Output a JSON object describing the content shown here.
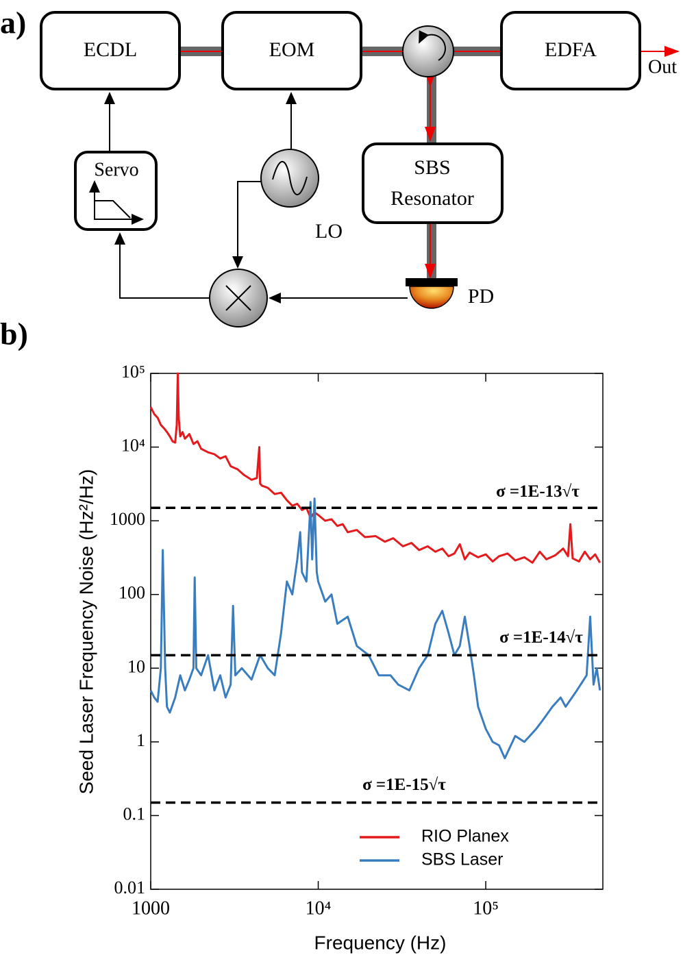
{
  "panel_labels": [
    "a)",
    "b)"
  ],
  "diagram": {
    "ecdl": "ECDL",
    "eom": "EOM",
    "edfa": "EDFA",
    "servo": "Servo",
    "sbs": [
      "SBS",
      "Resonator"
    ],
    "lo": "LO",
    "pd": "PD",
    "out": "Out"
  },
  "chart_data": {
    "type": "line",
    "xlabel": "Frequency (Hz)",
    "ylabel": "Seed Laser Frequency Noise (Hz²/Hz)",
    "log_x": true,
    "log_y": true,
    "grid": false,
    "legend": "lower center",
    "xlim": [
      1000,
      500000
    ],
    "ylim": [
      0.01,
      100000
    ],
    "xticks": [
      1000,
      {
        "value": 10000,
        "label": "10⁴"
      },
      {
        "value": 100000,
        "label": "10⁵"
      }
    ],
    "yticks": [
      0.01,
      0.1,
      1,
      10,
      100,
      1000,
      {
        "value": 10000,
        "label": "10⁴"
      },
      {
        "value": 100000,
        "label": "10⁵"
      }
    ],
    "reference_lines": [
      {
        "value": 1500,
        "label": "σ =1E-13√τ"
      },
      {
        "value": 15,
        "label": "σ =1E-14√τ"
      },
      {
        "value": 0.15,
        "label": "σ =1E-15√τ"
      }
    ],
    "series": [
      {
        "name": "RIO Planex",
        "color": "#e41a1c",
        "x": [
          1000,
          1050,
          1100,
          1150,
          1200,
          1250,
          1300,
          1350,
          1400,
          1430,
          1450,
          1470,
          1500,
          1550,
          1600,
          1700,
          1800,
          1900,
          2000,
          2200,
          2400,
          2600,
          2800,
          3000,
          3300,
          3600,
          4000,
          4300,
          4450,
          4500,
          4600,
          5000,
          5500,
          6000,
          6500,
          7000,
          7500,
          8000,
          8500,
          9000,
          9500,
          10000,
          11000,
          12000,
          13000,
          14000,
          15000,
          17000,
          19000,
          22000,
          25000,
          28000,
          32000,
          36000,
          40000,
          45000,
          50000,
          55000,
          60000,
          65000,
          70000,
          75000,
          80000,
          90000,
          100000,
          110000,
          120000,
          135000,
          150000,
          170000,
          190000,
          210000,
          230000,
          260000,
          290000,
          310000,
          320000,
          330000,
          360000,
          390000,
          420000,
          450000,
          480000
        ],
        "values": [
          35000,
          28000,
          25000,
          20000,
          18000,
          16000,
          14000,
          12000,
          11500,
          20000,
          100000,
          25000,
          14000,
          16000,
          13000,
          15000,
          11000,
          12000,
          9500,
          8500,
          8000,
          7000,
          7500,
          5500,
          5000,
          4200,
          3600,
          3800,
          10000,
          3200,
          3000,
          2800,
          2300,
          2400,
          1900,
          1600,
          1700,
          1400,
          1500,
          1100,
          1300,
          1200,
          1000,
          1050,
          850,
          900,
          700,
          750,
          600,
          620,
          520,
          580,
          450,
          500,
          400,
          450,
          380,
          420,
          330,
          360,
          480,
          300,
          370,
          320,
          350,
          280,
          330,
          360,
          290,
          320,
          270,
          380,
          300,
          340,
          420,
          330,
          900,
          310,
          280,
          380,
          300,
          350,
          270
        ]
      },
      {
        "name": "SBS Laser",
        "color": "#3a7dbf",
        "x": [
          1000,
          1050,
          1100,
          1150,
          1180,
          1220,
          1250,
          1300,
          1400,
          1500,
          1600,
          1700,
          1800,
          1830,
          1870,
          2000,
          2200,
          2400,
          2600,
          2800,
          3000,
          3100,
          3200,
          3500,
          4000,
          4500,
          5000,
          5500,
          6000,
          6500,
          7000,
          7500,
          7800,
          8000,
          8500,
          9000,
          9200,
          9500,
          9800,
          10000,
          11000,
          12000,
          13000,
          15000,
          17000,
          20000,
          23000,
          27000,
          30000,
          35000,
          40000,
          45000,
          50000,
          55000,
          60000,
          65000,
          70000,
          75000,
          80000,
          85000,
          90000,
          100000,
          110000,
          120000,
          130000,
          150000,
          170000,
          200000,
          220000,
          250000,
          280000,
          300000,
          350000,
          400000,
          420000,
          440000,
          460000,
          480000
        ],
        "values": [
          5,
          4,
          3.5,
          10,
          400,
          10,
          3,
          2.5,
          4,
          8,
          5,
          7,
          10,
          170,
          10,
          8,
          15,
          5,
          8,
          4,
          6,
          70,
          8,
          10,
          7,
          15,
          10,
          8,
          30,
          150,
          100,
          300,
          700,
          200,
          150,
          1800,
          300,
          2000,
          200,
          150,
          80,
          100,
          40,
          50,
          20,
          15,
          8,
          8,
          6,
          5,
          10,
          15,
          40,
          60,
          30,
          15,
          20,
          50,
          20,
          8,
          3,
          1.5,
          1,
          0.9,
          0.6,
          1.2,
          1,
          1.5,
          2,
          3,
          4,
          3,
          5,
          8,
          50,
          6,
          10,
          5
        ]
      }
    ]
  }
}
